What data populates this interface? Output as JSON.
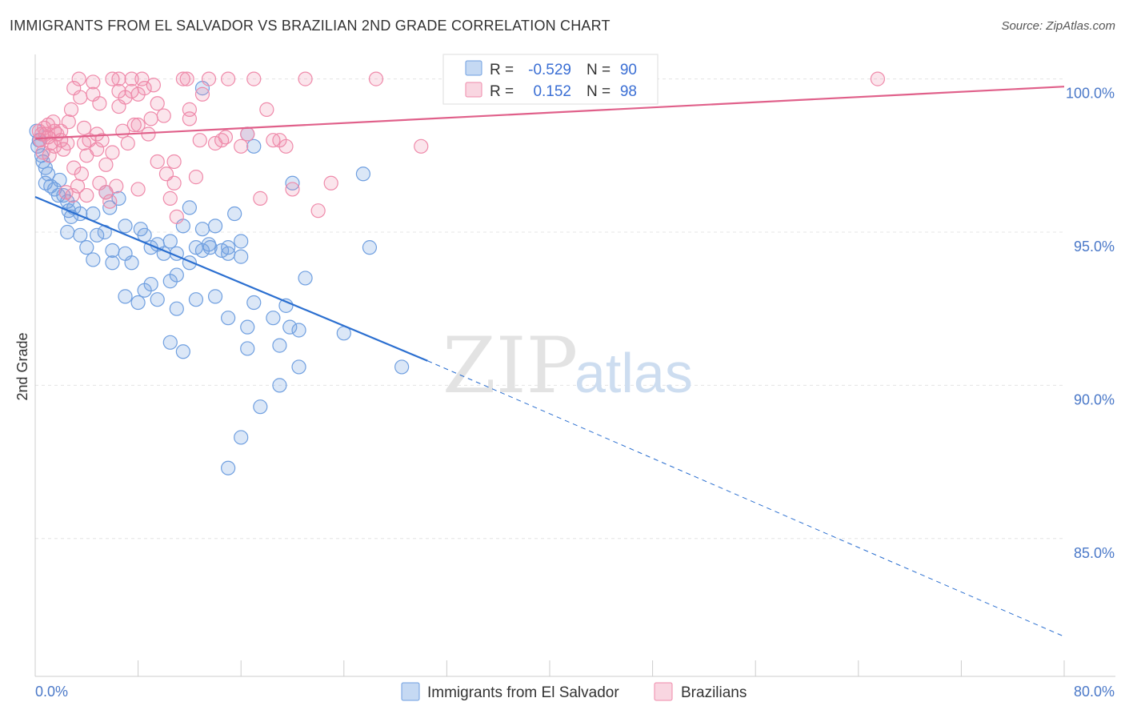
{
  "header": {
    "title": "IMMIGRANTS FROM EL SALVADOR VS BRAZILIAN 2ND GRADE CORRELATION CHART",
    "source": "Source: ZipAtlas.com"
  },
  "watermark": {
    "zip": "ZIP",
    "atlas": "atlas"
  },
  "colors": {
    "blue": "#6f9fe0",
    "blue_fill": "rgba(111,159,224,0.25)",
    "blue_line": "#2b6fd0",
    "pink": "#ef8aaa",
    "pink_fill": "rgba(239,138,170,0.22)",
    "pink_line": "#e0608a",
    "grid": "#e4e4e4",
    "tick_label": "#4a78c8"
  },
  "legend": {
    "r_label": "R =",
    "n_label": "N =",
    "series": [
      {
        "r": "-0.529",
        "n": "90"
      },
      {
        "r": "0.152",
        "n": "98"
      }
    ]
  },
  "chart_data": {
    "type": "scatter",
    "title": "IMMIGRANTS FROM EL SALVADOR VS BRAZILIAN 2ND GRADE CORRELATION CHART",
    "xlabel": "",
    "ylabel": "2nd Grade",
    "xlim": [
      0,
      80
    ],
    "ylim": [
      80.5,
      100.8
    ],
    "x_tick_labels": [
      "0.0%",
      "80.0%"
    ],
    "y_ticks": [
      85,
      90,
      95,
      100
    ],
    "y_tick_labels": [
      "85.0%",
      "90.0%",
      "95.0%",
      "100.0%"
    ],
    "grid": true,
    "legend_position": "bottom",
    "series": [
      {
        "name": "Immigrants from El Salvador",
        "r": -0.529,
        "n": 90,
        "trend": {
          "x0": 0,
          "y0": 96.15,
          "x1": 30.5,
          "y1": 90.8,
          "x_dash_end": 80,
          "y_dash_end": 81.8
        },
        "points": [
          [
            0.1,
            98.3
          ],
          [
            0.3,
            98.0
          ],
          [
            0.2,
            97.8
          ],
          [
            0.5,
            97.5
          ],
          [
            0.6,
            97.3
          ],
          [
            0.8,
            97.1
          ],
          [
            1.0,
            96.9
          ],
          [
            0.8,
            96.6
          ],
          [
            1.2,
            96.5
          ],
          [
            1.5,
            96.4
          ],
          [
            1.9,
            96.7
          ],
          [
            1.8,
            96.2
          ],
          [
            2.2,
            96.2
          ],
          [
            2.5,
            96.0
          ],
          [
            3.0,
            95.8
          ],
          [
            3.5,
            95.6
          ],
          [
            2.8,
            95.5
          ],
          [
            2.6,
            95.7
          ],
          [
            5.5,
            96.3
          ],
          [
            6.5,
            96.1
          ],
          [
            5.8,
            95.8
          ],
          [
            4.5,
            95.6
          ],
          [
            2.5,
            95.0
          ],
          [
            3.5,
            94.9
          ],
          [
            4.0,
            94.5
          ],
          [
            4.8,
            94.9
          ],
          [
            5.4,
            95.0
          ],
          [
            4.5,
            94.1
          ],
          [
            6.0,
            94.4
          ],
          [
            7.0,
            94.3
          ],
          [
            6.0,
            94.0
          ],
          [
            7.5,
            94.0
          ],
          [
            7.0,
            95.2
          ],
          [
            8.2,
            95.1
          ],
          [
            8.5,
            94.9
          ],
          [
            9.5,
            94.6
          ],
          [
            9.0,
            94.5
          ],
          [
            10.0,
            94.3
          ],
          [
            10.5,
            94.7
          ],
          [
            11.5,
            95.2
          ],
          [
            11.0,
            94.3
          ],
          [
            12.0,
            94.0
          ],
          [
            11.0,
            93.6
          ],
          [
            12.5,
            94.5
          ],
          [
            13.0,
            94.4
          ],
          [
            12.0,
            95.8
          ],
          [
            13.0,
            95.1
          ],
          [
            14.0,
            95.2
          ],
          [
            14.5,
            94.4
          ],
          [
            15.0,
            94.5
          ],
          [
            15.0,
            94.3
          ],
          [
            13.5,
            94.6
          ],
          [
            13.6,
            94.5
          ],
          [
            16.0,
            94.7
          ],
          [
            15.5,
            95.6
          ],
          [
            9.0,
            93.3
          ],
          [
            8.5,
            93.1
          ],
          [
            8.0,
            92.7
          ],
          [
            7.0,
            92.9
          ],
          [
            9.5,
            92.8
          ],
          [
            10.5,
            93.4
          ],
          [
            11.0,
            92.5
          ],
          [
            12.5,
            92.8
          ],
          [
            14.0,
            92.9
          ],
          [
            15.0,
            92.2
          ],
          [
            17.0,
            92.7
          ],
          [
            16.5,
            91.9
          ],
          [
            19.5,
            92.6
          ],
          [
            18.5,
            92.2
          ],
          [
            19.8,
            91.9
          ],
          [
            20.5,
            91.8
          ],
          [
            19.0,
            91.3
          ],
          [
            16.5,
            91.2
          ],
          [
            10.5,
            91.4
          ],
          [
            11.5,
            91.1
          ],
          [
            21.0,
            93.5
          ],
          [
            24.0,
            91.7
          ],
          [
            28.5,
            90.6
          ],
          [
            26.0,
            94.5
          ],
          [
            20.5,
            90.6
          ],
          [
            19.0,
            90.0
          ],
          [
            17.5,
            89.3
          ],
          [
            16.0,
            88.3
          ],
          [
            15.0,
            87.3
          ],
          [
            16.0,
            94.2
          ],
          [
            13.0,
            99.7
          ],
          [
            16.5,
            98.2
          ],
          [
            17.0,
            97.8
          ],
          [
            20.0,
            96.6
          ],
          [
            25.5,
            96.9
          ]
        ]
      },
      {
        "name": "Brazilians",
        "r": 0.152,
        "n": 98,
        "trend": {
          "x0": 0,
          "y0": 98.05,
          "x1": 80,
          "y1": 99.75
        },
        "points": [
          [
            0.3,
            98.3
          ],
          [
            0.5,
            98.2
          ],
          [
            0.7,
            98.4
          ],
          [
            0.6,
            97.6
          ],
          [
            1.0,
            98.1
          ],
          [
            1.2,
            97.9
          ],
          [
            1.0,
            98.5
          ],
          [
            1.5,
            98.3
          ],
          [
            1.5,
            97.8
          ],
          [
            2.0,
            98.0
          ],
          [
            2.0,
            98.3
          ],
          [
            2.2,
            97.7
          ],
          [
            2.5,
            97.9
          ],
          [
            2.6,
            98.6
          ],
          [
            2.8,
            99.0
          ],
          [
            3.0,
            97.1
          ],
          [
            3.3,
            96.5
          ],
          [
            3.0,
            99.7
          ],
          [
            3.4,
            100.0
          ],
          [
            3.5,
            99.4
          ],
          [
            3.8,
            98.4
          ],
          [
            3.8,
            97.9
          ],
          [
            4.0,
            97.5
          ],
          [
            4.0,
            96.2
          ],
          [
            4.5,
            99.9
          ],
          [
            4.5,
            99.5
          ],
          [
            4.8,
            98.2
          ],
          [
            4.8,
            97.7
          ],
          [
            5.0,
            96.6
          ],
          [
            5.0,
            99.2
          ],
          [
            5.2,
            98.0
          ],
          [
            5.5,
            97.2
          ],
          [
            5.5,
            96.3
          ],
          [
            6.0,
            97.6
          ],
          [
            6.0,
            100.0
          ],
          [
            6.5,
            99.6
          ],
          [
            6.5,
            99.1
          ],
          [
            6.3,
            96.5
          ],
          [
            6.5,
            100.0
          ],
          [
            7.0,
            99.4
          ],
          [
            7.2,
            97.9
          ],
          [
            7.5,
            100.0
          ],
          [
            7.5,
            99.6
          ],
          [
            7.7,
            98.5
          ],
          [
            8.0,
            98.5
          ],
          [
            8.0,
            96.4
          ],
          [
            8.5,
            99.7
          ],
          [
            8.0,
            99.5
          ],
          [
            8.8,
            98.2
          ],
          [
            9.0,
            98.7
          ],
          [
            9.5,
            99.2
          ],
          [
            9.5,
            97.3
          ],
          [
            10.0,
            98.8
          ],
          [
            10.2,
            96.9
          ],
          [
            10.5,
            96.1
          ],
          [
            10.8,
            97.3
          ],
          [
            11.0,
            95.5
          ],
          [
            11.5,
            100.0
          ],
          [
            12.0,
            98.7
          ],
          [
            12.0,
            99.0
          ],
          [
            12.5,
            96.8
          ],
          [
            13.0,
            99.5
          ],
          [
            13.5,
            100.0
          ],
          [
            14.0,
            97.9
          ],
          [
            14.5,
            98.0
          ],
          [
            15.0,
            100.0
          ],
          [
            16.0,
            97.8
          ],
          [
            16.5,
            98.2
          ],
          [
            17.0,
            100.0
          ],
          [
            17.5,
            96.1
          ],
          [
            18.5,
            98.0
          ],
          [
            19.0,
            98.0
          ],
          [
            19.5,
            97.8
          ],
          [
            20.0,
            96.4
          ],
          [
            21.0,
            100.0
          ],
          [
            22.0,
            95.7
          ],
          [
            23.0,
            96.6
          ],
          [
            26.5,
            100.0
          ],
          [
            30.0,
            97.8
          ],
          [
            0.4,
            98.0
          ],
          [
            0.8,
            98.2
          ],
          [
            1.1,
            97.5
          ],
          [
            1.4,
            98.6
          ],
          [
            1.7,
            98.2
          ],
          [
            2.4,
            96.3
          ],
          [
            2.9,
            96.2
          ],
          [
            3.6,
            96.9
          ],
          [
            4.2,
            98.0
          ],
          [
            5.8,
            96.0
          ],
          [
            6.8,
            98.3
          ],
          [
            8.3,
            100.0
          ],
          [
            9.2,
            99.8
          ],
          [
            10.8,
            96.6
          ],
          [
            11.8,
            100.0
          ],
          [
            12.8,
            98.0
          ],
          [
            14.8,
            98.1
          ],
          [
            18.0,
            99.0
          ],
          [
            65.5,
            100.0
          ]
        ]
      }
    ]
  }
}
